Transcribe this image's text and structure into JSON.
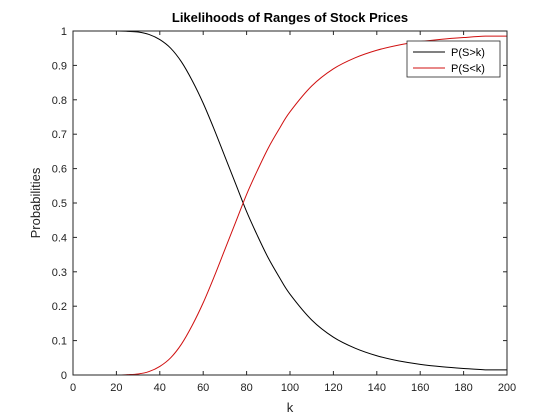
{
  "chart_data": {
    "type": "line",
    "title": "Likelihoods of Ranges of Stock Prices",
    "xlabel": "k",
    "ylabel": "Probabilities",
    "xlim": [
      0,
      200
    ],
    "ylim": [
      0,
      1
    ],
    "xticks": [
      0,
      20,
      40,
      60,
      80,
      100,
      120,
      140,
      160,
      180,
      200
    ],
    "yticks": [
      0,
      0.1,
      0.2,
      0.3,
      0.4,
      0.5,
      0.6,
      0.7,
      0.8,
      0.9,
      1
    ],
    "grid": false,
    "legend_position": "top-right",
    "x": [
      0,
      10,
      20,
      25,
      30,
      35,
      40,
      45,
      50,
      55,
      60,
      65,
      70,
      75,
      80,
      85,
      90,
      95,
      100,
      110,
      120,
      130,
      140,
      150,
      160,
      170,
      180,
      190,
      200
    ],
    "series": [
      {
        "name": "P(S>k)",
        "color": "#000000",
        "values": [
          1,
          1,
          1,
          0.999,
          0.997,
          0.99,
          0.975,
          0.95,
          0.91,
          0.855,
          0.79,
          0.715,
          0.635,
          0.555,
          0.475,
          0.405,
          0.34,
          0.285,
          0.235,
          0.16,
          0.11,
          0.078,
          0.056,
          0.041,
          0.031,
          0.024,
          0.019,
          0.015,
          0.015
        ]
      },
      {
        "name": "P(S<k)",
        "color": "#d01010",
        "values": [
          0,
          0,
          0,
          0.001,
          0.003,
          0.01,
          0.025,
          0.05,
          0.09,
          0.145,
          0.21,
          0.285,
          0.365,
          0.445,
          0.525,
          0.595,
          0.66,
          0.715,
          0.765,
          0.84,
          0.89,
          0.922,
          0.944,
          0.959,
          0.969,
          0.976,
          0.981,
          0.985,
          0.985
        ]
      }
    ]
  }
}
